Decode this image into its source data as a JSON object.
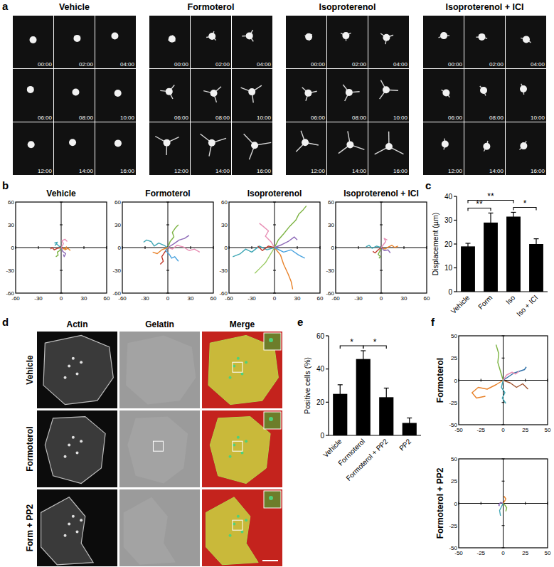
{
  "panel_labels": [
    "a",
    "b",
    "c",
    "d",
    "e",
    "f"
  ],
  "panel_a": {
    "conditions": [
      "Vehicle",
      "Formoterol",
      "Isoproterenol",
      "Isoproterenol + ICI"
    ],
    "timestamps": [
      "00:00",
      "02:00",
      "04:00",
      "06:00",
      "08:00",
      "10:00",
      "12:00",
      "14:00",
      "16:00"
    ]
  },
  "panel_d": {
    "columns": [
      "Actin",
      "Gelatin",
      "Merge"
    ],
    "rows": [
      "Vehicle",
      "Formoterol",
      "Form + PP2"
    ]
  },
  "chart_data": [
    {
      "type": "line",
      "title": "Vehicle",
      "xlim": [
        -60,
        60
      ],
      "ylim": [
        -60,
        60
      ],
      "xticks": [
        -60,
        -30,
        0,
        30,
        60
      ],
      "yticks": [
        -60,
        -30,
        0,
        30,
        60
      ],
      "series": [
        {
          "color": "#3fa7b5",
          "x": [
            0,
            -3,
            -6,
            -8,
            -5,
            -9
          ],
          "values": [
            0,
            2,
            5,
            3,
            7,
            6
          ]
        },
        {
          "color": "#e8822a",
          "x": [
            0,
            4,
            7,
            5,
            9,
            12
          ],
          "values": [
            0,
            -2,
            1,
            -3,
            -1,
            -4
          ]
        },
        {
          "color": "#7cb342",
          "x": [
            0,
            -2,
            -5,
            -4,
            -7
          ],
          "values": [
            0,
            -4,
            -6,
            -10,
            -12
          ]
        },
        {
          "color": "#e88fb5",
          "x": [
            0,
            3,
            1,
            5,
            8
          ],
          "values": [
            0,
            5,
            9,
            11,
            8
          ]
        },
        {
          "color": "#c0392b",
          "x": [
            0,
            -5,
            -9,
            -12,
            -14
          ],
          "values": [
            0,
            -1,
            -3,
            0,
            -2
          ]
        },
        {
          "color": "#8e6bb8",
          "x": [
            0,
            2,
            6,
            4,
            3
          ],
          "values": [
            0,
            -5,
            -8,
            -12,
            -9
          ]
        }
      ]
    },
    {
      "type": "line",
      "title": "Formoterol",
      "xlim": [
        -60,
        60
      ],
      "ylim": [
        -60,
        60
      ],
      "xticks": [
        -60,
        -30,
        0,
        30,
        60
      ],
      "yticks": [
        -60,
        -30,
        0,
        30,
        60
      ],
      "series": [
        {
          "color": "#3fa7b5",
          "x": [
            0,
            -5,
            -12,
            -18,
            -22,
            -28,
            -32
          ],
          "values": [
            0,
            3,
            6,
            2,
            8,
            10,
            7
          ]
        },
        {
          "color": "#e88fb5",
          "x": [
            0,
            6,
            12,
            20,
            28,
            35,
            42
          ],
          "values": [
            0,
            -2,
            3,
            1,
            -4,
            -2,
            -6
          ]
        },
        {
          "color": "#7cb342",
          "x": [
            0,
            3,
            8,
            6,
            10,
            14
          ],
          "values": [
            0,
            8,
            14,
            20,
            26,
            30
          ]
        },
        {
          "color": "#c0392b",
          "x": [
            0,
            -4,
            -8,
            -6,
            -10
          ],
          "values": [
            0,
            -6,
            -12,
            -18,
            -22
          ]
        },
        {
          "color": "#8e6bb8",
          "x": [
            0,
            8,
            15,
            22,
            28
          ],
          "values": [
            0,
            5,
            10,
            12,
            16
          ]
        },
        {
          "color": "#4aa3df",
          "x": [
            0,
            -3,
            2,
            5,
            9,
            14
          ],
          "values": [
            0,
            -4,
            -9,
            -14,
            -12,
            -18
          ]
        },
        {
          "color": "#e8822a",
          "x": [
            0,
            -8,
            -14,
            -20
          ],
          "values": [
            0,
            -3,
            -8,
            -6
          ]
        }
      ]
    },
    {
      "type": "line",
      "title": "Isoproterenol",
      "xlim": [
        -60,
        60
      ],
      "ylim": [
        -60,
        60
      ],
      "xticks": [
        -60,
        -30,
        0,
        30,
        60
      ],
      "yticks": [
        -60,
        -30,
        0,
        30,
        60
      ],
      "series": [
        {
          "color": "#3fa7b5",
          "x": [
            0,
            -10,
            -20,
            -30,
            -38,
            -45,
            -55
          ],
          "values": [
            0,
            -3,
            2,
            -6,
            -2,
            -8,
            -12
          ]
        },
        {
          "color": "#7cb342",
          "x": [
            0,
            5,
            12,
            20,
            28,
            32,
            38,
            42
          ],
          "values": [
            0,
            10,
            18,
            28,
            36,
            44,
            50,
            55
          ]
        },
        {
          "color": "#e8822a",
          "x": [
            0,
            8,
            12,
            18,
            22,
            24
          ],
          "values": [
            0,
            -10,
            -22,
            -35,
            -45,
            -55
          ]
        },
        {
          "color": "#9ccc65",
          "x": [
            0,
            -6,
            -12,
            -20,
            -26
          ],
          "values": [
            0,
            -10,
            -20,
            -28,
            -34
          ]
        },
        {
          "color": "#8e6bb8",
          "x": [
            0,
            10,
            18,
            26,
            30
          ],
          "values": [
            0,
            4,
            8,
            14,
            10
          ]
        },
        {
          "color": "#e88fb5",
          "x": [
            0,
            -5,
            -12,
            -8,
            -15,
            -20
          ],
          "values": [
            0,
            8,
            15,
            22,
            28,
            32
          ]
        },
        {
          "color": "#c0392b",
          "x": [
            0,
            -8,
            -16,
            -22
          ],
          "values": [
            0,
            2,
            -4,
            2
          ]
        },
        {
          "color": "#4aa3df",
          "x": [
            0,
            12,
            22,
            32,
            40
          ],
          "values": [
            0,
            -6,
            -3,
            -10,
            -14
          ]
        }
      ]
    },
    {
      "type": "line",
      "title": "Isoproterenol + ICI",
      "xlim": [
        -60,
        60
      ],
      "ylim": [
        -60,
        60
      ],
      "xticks": [
        -60,
        -30,
        0,
        30,
        60
      ],
      "yticks": [
        -60,
        -30,
        0,
        30,
        60
      ],
      "series": [
        {
          "color": "#3fa7b5",
          "x": [
            0,
            -6,
            -12,
            -16,
            -20
          ],
          "values": [
            0,
            2,
            -1,
            3,
            1
          ]
        },
        {
          "color": "#e8822a",
          "x": [
            0,
            5,
            10,
            14,
            18,
            22
          ],
          "values": [
            0,
            -2,
            1,
            3,
            0,
            2
          ]
        },
        {
          "color": "#7cb342",
          "x": [
            0,
            -2,
            -4,
            -1,
            -3
          ],
          "values": [
            0,
            -5,
            -9,
            -12,
            -14
          ]
        },
        {
          "color": "#e88fb5",
          "x": [
            0,
            3,
            6,
            4,
            8
          ],
          "values": [
            0,
            4,
            8,
            12,
            10
          ]
        },
        {
          "color": "#c0392b",
          "x": [
            0,
            -4,
            -8,
            -11
          ],
          "values": [
            0,
            -3,
            -7,
            -5
          ]
        },
        {
          "color": "#8e6bb8",
          "x": [
            0,
            4,
            9,
            12
          ],
          "values": [
            0,
            -4,
            -3,
            -7
          ]
        }
      ]
    },
    {
      "type": "bar",
      "categories": [
        "Vehicle",
        "Form",
        "Iso",
        "Iso + ICI"
      ],
      "values": [
        19,
        29,
        31.5,
        20
      ],
      "errors": [
        1.3,
        4,
        1.8,
        2.2
      ],
      "color": "#000000",
      "y_label": "Displacement (µm)",
      "ylim": [
        0,
        40
      ],
      "yticks": [
        0,
        10,
        20,
        30,
        40
      ],
      "significance": [
        {
          "pair": [
            "Vehicle",
            "Form"
          ],
          "label": "**"
        },
        {
          "pair": [
            "Vehicle",
            "Iso"
          ],
          "label": "**"
        },
        {
          "pair": [
            "Iso",
            "Iso + ICI"
          ],
          "label": "*"
        }
      ]
    },
    {
      "type": "bar",
      "categories": [
        "Vehicle",
        "Formoterol",
        "Formoterol + PP2",
        "PP2"
      ],
      "values": [
        25,
        46,
        23,
        7.5
      ],
      "errors": [
        5.5,
        5,
        5.5,
        3
      ],
      "color": "#000000",
      "y_label": "Positive cells (%)",
      "ylim": [
        0,
        60
      ],
      "yticks": [
        0,
        20,
        40,
        60
      ],
      "significance": [
        {
          "pair": [
            "Vehicle",
            "Formoterol"
          ],
          "label": "*"
        },
        {
          "pair": [
            "Formoterol",
            "Formoterol + PP2"
          ],
          "label": "*"
        }
      ]
    },
    {
      "type": "line",
      "title": "Formoterol",
      "xlim": [
        -50,
        50
      ],
      "ylim": [
        -50,
        50
      ],
      "xticks": [
        -50,
        -25,
        0,
        25,
        50
      ],
      "yticks": [
        -50,
        -25,
        0,
        25,
        50
      ],
      "series": [
        {
          "color": "#e8822a",
          "x": [
            0,
            -8,
            -18,
            -28,
            -35,
            -30,
            -20
          ],
          "values": [
            0,
            -5,
            -10,
            -8,
            -14,
            -20,
            -18
          ]
        },
        {
          "color": "#7cb342",
          "x": [
            0,
            -3,
            -6,
            -5,
            -8
          ],
          "values": [
            0,
            10,
            20,
            30,
            40
          ]
        },
        {
          "color": "#a0522d",
          "x": [
            0,
            8,
            15,
            22,
            28
          ],
          "values": [
            0,
            -3,
            -8,
            -4,
            -10
          ]
        },
        {
          "color": "#2e6fa7",
          "x": [
            0,
            6,
            12,
            18,
            24,
            26
          ],
          "values": [
            0,
            4,
            8,
            10,
            12,
            15
          ]
        },
        {
          "color": "#e88fb5",
          "x": [
            0,
            4,
            10,
            14,
            18
          ],
          "values": [
            0,
            6,
            9,
            7,
            10
          ]
        },
        {
          "color": "#3fa7b5",
          "x": [
            0,
            -2,
            2,
            -1,
            3
          ],
          "values": [
            0,
            -8,
            -14,
            -20,
            -26
          ]
        }
      ]
    },
    {
      "type": "line",
      "title": "Formoterol + PP2",
      "xlim": [
        -50,
        50
      ],
      "ylim": [
        -50,
        50
      ],
      "xticks": [
        -50,
        -25,
        0,
        25,
        50
      ],
      "yticks": [
        -50,
        -25,
        0,
        25,
        50
      ],
      "series": [
        {
          "color": "#3fa7b5",
          "x": [
            0,
            -2,
            -4,
            -3
          ],
          "values": [
            0,
            -4,
            -8,
            -14
          ]
        },
        {
          "color": "#e8822a",
          "x": [
            0,
            2,
            3,
            1
          ],
          "values": [
            0,
            3,
            5,
            8
          ]
        },
        {
          "color": "#8e6bb8",
          "x": [
            0,
            -3,
            -5,
            -4
          ],
          "values": [
            0,
            1,
            -2,
            -3
          ]
        },
        {
          "color": "#7cb342",
          "x": [
            0,
            2,
            4,
            3
          ],
          "values": [
            0,
            -2,
            -5,
            -9
          ]
        }
      ]
    }
  ]
}
